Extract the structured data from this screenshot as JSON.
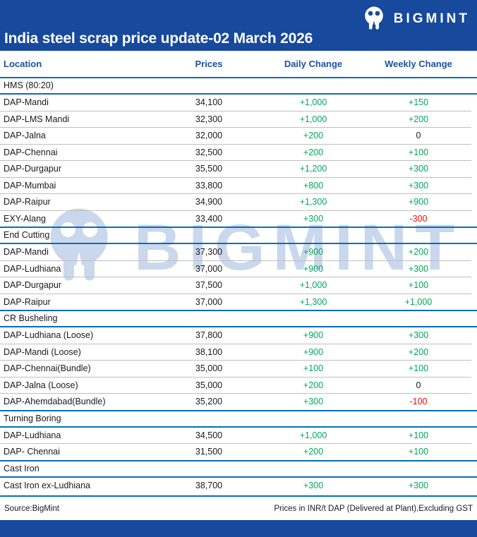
{
  "header": {
    "title": "India steel scrap price update-02 March 2026",
    "brand": "BIGMINT"
  },
  "watermark": {
    "brand": "BIGMINT"
  },
  "chart_data": {
    "type": "table",
    "title": "India steel scrap price update-02 March 2026",
    "columns": [
      "Location",
      "Prices",
      "Daily Change",
      "Weekly Change"
    ],
    "sections": [
      {
        "name": "HMS (80:20)",
        "rows": [
          [
            "DAP-Mandi",
            "34,100",
            "+1,000",
            "+150"
          ],
          [
            "DAP-LMS Mandi",
            "32,300",
            "+1,000",
            "+200"
          ],
          [
            "DAP-Jalna",
            "32,000",
            "+200",
            "0"
          ],
          [
            "DAP-Chennai",
            "32,500",
            "+200",
            "+100"
          ],
          [
            "DAP-Durgapur",
            "35,500",
            "+1,200",
            "+300"
          ],
          [
            "DAP-Mumbai",
            "33,800",
            "+800",
            "+300"
          ],
          [
            "DAP-Raipur",
            "34,900",
            "+1,300",
            "+900"
          ],
          [
            "EXY-Alang",
            "33,400",
            "+300",
            "-300"
          ]
        ]
      },
      {
        "name": "End Cutting",
        "rows": [
          [
            "DAP-Mandi",
            "37,300",
            "+900",
            "+200"
          ],
          [
            "DAP-Ludhiana",
            "37,000",
            "+900",
            "+300"
          ],
          [
            "DAP-Durgapur",
            "37,500",
            "+1,000",
            "+100"
          ],
          [
            "DAP-Raipur",
            "37,000",
            "+1,300",
            "+1,000"
          ]
        ]
      },
      {
        "name": "CR Busheling",
        "rows": [
          [
            "DAP-Ludhiana (Loose)",
            "37,800",
            "+900",
            "+300"
          ],
          [
            "DAP-Mandi (Loose)",
            "38,100",
            "+900",
            "+200"
          ],
          [
            "DAP-Chennai(Bundle)",
            "35,000",
            "+100",
            "+100"
          ],
          [
            "DAP-Jalna (Loose)",
            "35,000",
            "+200",
            "0"
          ],
          [
            "DAP-Ahemdabad(Bundle)",
            "35,200",
            "+300",
            "-100"
          ]
        ]
      },
      {
        "name": "Turning Boring",
        "rows": [
          [
            "DAP-Ludhiana",
            "34,500",
            "+1,000",
            "+100"
          ],
          [
            "DAP- Chennai",
            "31,500",
            "+200",
            "+100"
          ]
        ]
      },
      {
        "name": "Cast Iron",
        "rows": [
          [
            "Cast Iron ex-Ludhiana",
            "38,700",
            "+300",
            "+300"
          ]
        ]
      }
    ]
  },
  "footer": {
    "source": "Source:BigMint",
    "note": "Prices in INR/t DAP (Delivered at Plant),Excluding GST"
  },
  "colors": {
    "brand_blue": "#17499C",
    "line_blue": "#0A6CB8",
    "header_text_blue": "#1A52A8",
    "positive_green": "#00A859",
    "negative_red": "#FF0000",
    "row_line_gray": "#BFBFBF",
    "text_black": "#1A1A1A",
    "watermark_light_blue": "#C9D8EC"
  }
}
